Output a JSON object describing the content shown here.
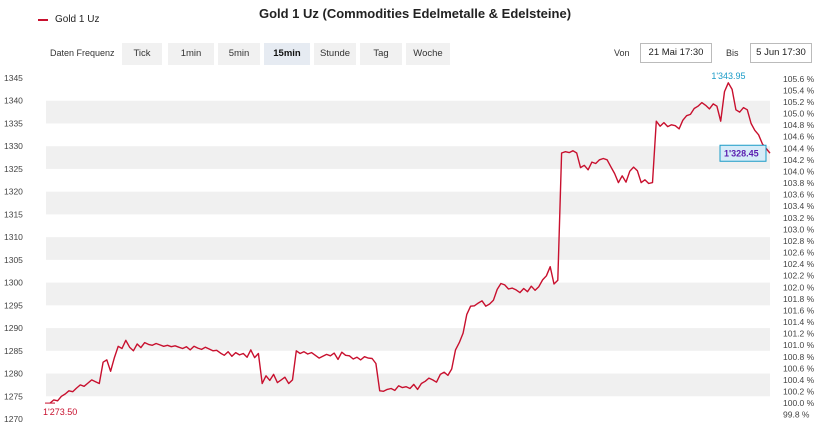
{
  "title": "Gold 1 Uz (Commodities Edelmetalle & Edelsteine)",
  "legend": {
    "label": "Gold 1 Uz",
    "color": "#c8102e"
  },
  "toolbar": {
    "frequency_label": "Daten Frequenz",
    "buttons": [
      "Tick",
      "1min",
      "5min",
      "15min",
      "Stunde",
      "Tag",
      "Woche"
    ],
    "active": "15min",
    "from_label": "Von",
    "from_value": "21 Mai 17:30",
    "to_label": "Bis",
    "to_value": "5 Jun 17:30"
  },
  "chart_data": {
    "type": "line",
    "title": "Gold 1 Uz (Commodities Edelmetalle & Edelsteine)",
    "series": [
      {
        "name": "Gold 1 Uz",
        "color": "#c8102e"
      }
    ],
    "ylim_left": [
      1270,
      1345
    ],
    "left_ticks": [
      1270,
      1275,
      1280,
      1285,
      1290,
      1295,
      1300,
      1305,
      1310,
      1315,
      1320,
      1325,
      1330,
      1335,
      1340,
      1345
    ],
    "right_ticks": [
      "99.8 %",
      "100.0 %",
      "100.2 %",
      "100.4 %",
      "100.6 %",
      "100.8 %",
      "101.0 %",
      "101.2 %",
      "101.4 %",
      "101.6 %",
      "101.8 %",
      "102.0 %",
      "102.2 %",
      "102.4 %",
      "102.6 %",
      "102.8 %",
      "103.0 %",
      "103.2 %",
      "103.4 %",
      "103.6 %",
      "103.8 %",
      "104.0 %",
      "104.2 %",
      "104.4 %",
      "104.6 %",
      "104.8 %",
      "105.0 %",
      "105.2 %",
      "105.4 %",
      "105.6 %"
    ],
    "right_reference": 1273.5,
    "grid": "alternating horizontal bands",
    "min_label": "1'273.50",
    "max_label": "1'343.95",
    "last_label": "1'328.45",
    "values": [
      1273.5,
      1274.2,
      1274.0,
      1275.0,
      1275.5,
      1276.2,
      1276.0,
      1276.8,
      1277.5,
      1277.2,
      1277.9,
      1278.6,
      1278.2,
      1277.8,
      1282.5,
      1283.0,
      1280.5,
      1283.5,
      1286.0,
      1285.5,
      1287.3,
      1285.8,
      1285.0,
      1286.5,
      1285.7,
      1286.8,
      1286.4,
      1286.2,
      1286.6,
      1286.3,
      1286.0,
      1286.2,
      1285.9,
      1286.1,
      1285.8,
      1285.5,
      1285.9,
      1285.2,
      1286.0,
      1285.6,
      1285.3,
      1285.8,
      1285.4,
      1285.0,
      1285.1,
      1284.5,
      1284.0,
      1284.8,
      1283.8,
      1284.6,
      1284.1,
      1284.4,
      1283.6,
      1285.2,
      1283.5,
      1284.4,
      1277.8,
      1279.5,
      1278.5,
      1279.8,
      1278.0,
      1278.6,
      1279.2,
      1277.8,
      1278.6,
      1285.0,
      1284.4,
      1284.8,
      1284.3,
      1284.6,
      1284.0,
      1283.4,
      1283.8,
      1284.2,
      1283.9,
      1284.5,
      1283.1,
      1284.7,
      1284.0,
      1283.9,
      1283.2,
      1283.6,
      1283.0,
      1283.7,
      1283.4,
      1283.3,
      1282.2,
      1276.2,
      1276.1,
      1276.5,
      1276.7,
      1276.3,
      1277.3,
      1276.9,
      1277.1,
      1276.7,
      1277.6,
      1276.5,
      1277.8,
      1278.3,
      1279.0,
      1278.6,
      1278.1,
      1279.8,
      1280.3,
      1279.6,
      1281.0,
      1285.2,
      1286.8,
      1288.9,
      1293.0,
      1294.8,
      1294.9,
      1295.5,
      1296.0,
      1294.8,
      1295.3,
      1296.1,
      1298.5,
      1299.8,
      1299.5,
      1298.6,
      1298.8,
      1298.4,
      1297.8,
      1298.7,
      1298.0,
      1299.2,
      1298.3,
      1299.1,
      1300.6,
      1301.5,
      1303.5,
      1299.7,
      1300.5,
      1328.5,
      1328.8,
      1328.6,
      1329.0,
      1328.5,
      1325.3,
      1325.8,
      1324.8,
      1326.5,
      1326.2,
      1327.0,
      1327.3,
      1327.0,
      1325.5,
      1324.0,
      1322.0,
      1323.5,
      1322.1,
      1324.5,
      1325.4,
      1324.6,
      1322.0,
      1322.6,
      1321.8,
      1322.0,
      1335.5,
      1334.4,
      1335.2,
      1334.3,
      1334.7,
      1334.5,
      1333.8,
      1335.7,
      1336.7,
      1337.0,
      1338.3,
      1338.8,
      1339.6,
      1339.0,
      1338.2,
      1339.3,
      1338.8,
      1335.5,
      1342.0,
      1343.95,
      1342.5,
      1338.0,
      1337.5,
      1338.5,
      1338.0,
      1335.0,
      1333.5,
      1332.5,
      1330.5,
      1329.5,
      1328.45
    ]
  }
}
